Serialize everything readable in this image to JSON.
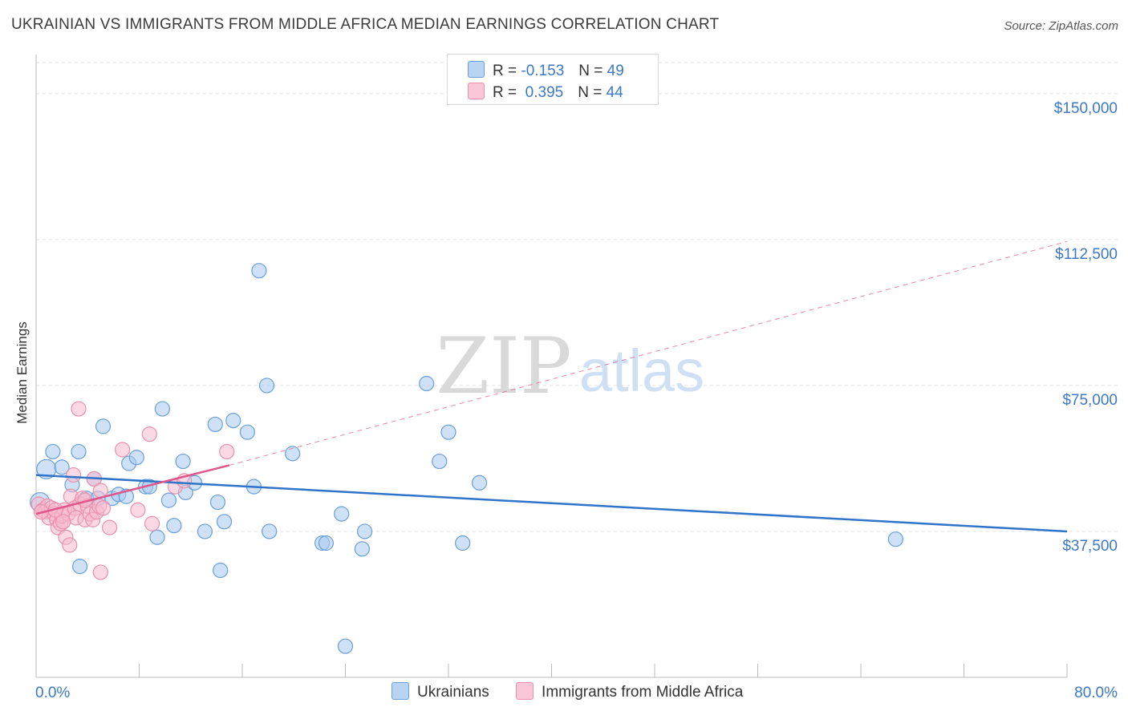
{
  "title": "UKRAINIAN VS IMMIGRANTS FROM MIDDLE AFRICA MEDIAN EARNINGS CORRELATION CHART",
  "source": "Source: ZipAtlas.com",
  "watermark": {
    "zip": "ZIP",
    "atlas": "atlas"
  },
  "legend": {
    "r_label": "R =",
    "n_label": "N =",
    "series1": {
      "r": "-0.153",
      "n": "49"
    },
    "series2": {
      "r": " 0.395",
      "n": "44"
    }
  },
  "chart_data": {
    "type": "scatter",
    "title": "UKRAINIAN VS IMMIGRANTS FROM MIDDLE AFRICA MEDIAN EARNINGS CORRELATION CHART",
    "xlabel": "",
    "ylabel": "Median Earnings",
    "xlim": [
      0,
      80
    ],
    "ylim": [
      0,
      158000
    ],
    "x_tick_labels": [
      "0.0%",
      "80.0%"
    ],
    "y_ticks": [
      37500,
      75000,
      112500,
      150000
    ],
    "y_tick_labels": [
      "$37,500",
      "$75,000",
      "$112,500",
      "$150,000"
    ],
    "series": [
      {
        "name": "Ukrainians",
        "color": "#a8c8f0",
        "stroke": "#6a9fd8",
        "trend_color": "#2f74c9",
        "trend": {
          "x0": 0,
          "y0": 52000,
          "x1": 80,
          "y1": 37500
        },
        "points": [
          [
            0.8,
            53500
          ],
          [
            1.3,
            58000
          ],
          [
            2.0,
            54000
          ],
          [
            3.3,
            58000
          ],
          [
            2.8,
            49500
          ],
          [
            3.9,
            46000
          ],
          [
            4.5,
            51000
          ],
          [
            4.8,
            46000
          ],
          [
            5.2,
            64500
          ],
          [
            5.9,
            46000
          ],
          [
            6.4,
            47000
          ],
          [
            7.0,
            46500
          ],
          [
            7.2,
            55000
          ],
          [
            7.8,
            56500
          ],
          [
            8.5,
            49000
          ],
          [
            8.8,
            49000
          ],
          [
            9.4,
            36000
          ],
          [
            9.8,
            69000
          ],
          [
            10.3,
            45500
          ],
          [
            10.7,
            39000
          ],
          [
            11.4,
            55500
          ],
          [
            11.6,
            47500
          ],
          [
            12.3,
            50000
          ],
          [
            13.1,
            37500
          ],
          [
            13.9,
            65000
          ],
          [
            14.1,
            45000
          ],
          [
            14.6,
            40000
          ],
          [
            15.3,
            66000
          ],
          [
            16.4,
            63000
          ],
          [
            16.9,
            49000
          ],
          [
            17.3,
            104500
          ],
          [
            17.9,
            75000
          ],
          [
            18.1,
            37500
          ],
          [
            19.9,
            57500
          ],
          [
            22.2,
            34500
          ],
          [
            22.5,
            34500
          ],
          [
            23.7,
            42000
          ],
          [
            24.0,
            8000
          ],
          [
            25.5,
            37500
          ],
          [
            25.3,
            33000
          ],
          [
            30.3,
            75500
          ],
          [
            31.3,
            55500
          ],
          [
            32.0,
            63000
          ],
          [
            33.1,
            34500
          ],
          [
            34.4,
            50000
          ],
          [
            3.4,
            28500
          ],
          [
            66.7,
            35500
          ],
          [
            14.3,
            27500
          ],
          [
            0.3,
            45000
          ]
        ]
      },
      {
        "name": "Immigrants from Middle Africa",
        "color": "#f6b9cd",
        "stroke": "#e891ad",
        "trend_color": "#e0568a",
        "trend": {
          "x0": 0,
          "y0": 42000,
          "x1": 15.0,
          "y1": 54500
        },
        "trend_ext": {
          "x0": 15.0,
          "y0": 54500,
          "x1": 80,
          "y1": 112000
        },
        "points": [
          [
            0.2,
            44500
          ],
          [
            0.5,
            43000
          ],
          [
            0.7,
            42500
          ],
          [
            0.9,
            44000
          ],
          [
            1.0,
            41000
          ],
          [
            1.2,
            43500
          ],
          [
            1.4,
            42000
          ],
          [
            1.6,
            40500
          ],
          [
            1.7,
            38500
          ],
          [
            1.9,
            39500
          ],
          [
            2.0,
            41500
          ],
          [
            2.2,
            43000
          ],
          [
            2.3,
            36000
          ],
          [
            2.5,
            42000
          ],
          [
            2.6,
            34000
          ],
          [
            2.7,
            46500
          ],
          [
            2.9,
            52000
          ],
          [
            3.0,
            43500
          ],
          [
            3.1,
            41000
          ],
          [
            3.3,
            69000
          ],
          [
            3.4,
            44500
          ],
          [
            3.6,
            46000
          ],
          [
            3.8,
            40500
          ],
          [
            4.0,
            44000
          ],
          [
            4.2,
            42000
          ],
          [
            4.4,
            40500
          ],
          [
            4.5,
            51000
          ],
          [
            4.7,
            42500
          ],
          [
            4.9,
            44000
          ],
          [
            5.0,
            48000
          ],
          [
            5.2,
            43500
          ],
          [
            5.7,
            38500
          ],
          [
            6.7,
            58500
          ],
          [
            7.9,
            43000
          ],
          [
            8.8,
            62500
          ],
          [
            9.0,
            39500
          ],
          [
            10.8,
            49000
          ],
          [
            11.5,
            50500
          ],
          [
            14.8,
            58000
          ],
          [
            5.0,
            27000
          ],
          [
            0.4,
            42500
          ],
          [
            1.5,
            43000
          ],
          [
            2.1,
            40000
          ],
          [
            3.8,
            45500
          ]
        ]
      }
    ]
  }
}
